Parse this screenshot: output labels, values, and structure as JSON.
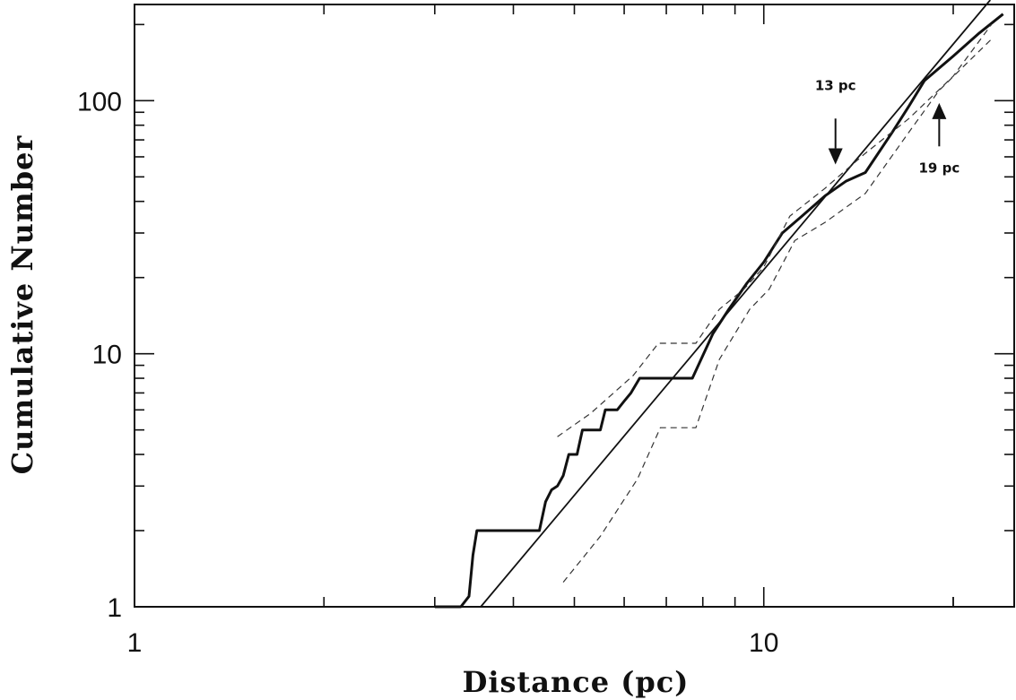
{
  "chart_data": {
    "type": "line",
    "xlabel": "Distance (pc)",
    "ylabel": "Cumulative Number",
    "xscale": "log",
    "yscale": "log",
    "xlim": [
      1,
      25
    ],
    "ylim": [
      1,
      240
    ],
    "x_ticks": [
      {
        "value": 1,
        "label": "1"
      },
      {
        "value": 10,
        "label": "10"
      }
    ],
    "y_ticks": [
      {
        "value": 1,
        "label": "1"
      },
      {
        "value": 10,
        "label": "10"
      },
      {
        "value": 100,
        "label": "100"
      }
    ],
    "grid": false,
    "series": [
      {
        "style": "solid-thick",
        "points": [
          [
            3.0,
            1
          ],
          [
            3.3,
            1
          ],
          [
            3.4,
            1.1
          ],
          [
            3.45,
            1.6
          ],
          [
            3.5,
            2
          ],
          [
            4.4,
            2
          ],
          [
            4.5,
            2.6
          ],
          [
            4.6,
            2.9
          ],
          [
            4.7,
            3.0
          ],
          [
            4.8,
            3.3
          ],
          [
            4.9,
            4
          ],
          [
            5.05,
            4
          ],
          [
            5.15,
            5
          ],
          [
            5.5,
            5
          ],
          [
            5.6,
            6
          ],
          [
            5.85,
            6
          ],
          [
            6.0,
            6.5
          ],
          [
            6.15,
            7
          ],
          [
            6.35,
            8
          ],
          [
            7.7,
            8
          ],
          [
            8.3,
            12
          ],
          [
            8.8,
            15
          ],
          [
            9.4,
            19
          ],
          [
            10.0,
            23
          ],
          [
            10.7,
            30
          ],
          [
            11.5,
            35
          ],
          [
            12.5,
            42
          ],
          [
            13.5,
            48
          ],
          [
            14.5,
            52
          ],
          [
            16.0,
            75
          ],
          [
            17.0,
            95
          ],
          [
            18.0,
            120
          ],
          [
            20.0,
            150
          ],
          [
            22.0,
            185
          ],
          [
            24.0,
            220
          ]
        ]
      },
      {
        "style": "solid-fit",
        "points": [
          [
            3.55,
            1
          ],
          [
            22.9,
            250
          ]
        ]
      },
      {
        "style": "dashed",
        "points": [
          [
            4.7,
            4.7
          ],
          [
            5.3,
            5.8
          ],
          [
            6.2,
            8.2
          ],
          [
            6.8,
            11
          ],
          [
            7.8,
            11
          ],
          [
            8.5,
            15
          ],
          [
            9.3,
            18
          ],
          [
            10.0,
            22
          ],
          [
            11.0,
            35
          ],
          [
            12.5,
            45
          ],
          [
            14.5,
            62
          ],
          [
            17.0,
            85
          ],
          [
            20.0,
            125
          ],
          [
            23.0,
            200
          ]
        ]
      },
      {
        "style": "dashed",
        "points": [
          [
            4.8,
            1.25
          ],
          [
            5.5,
            1.9
          ],
          [
            6.3,
            3.2
          ],
          [
            6.85,
            5.1
          ],
          [
            7.8,
            5.1
          ],
          [
            8.5,
            9.5
          ],
          [
            9.5,
            15
          ],
          [
            10.2,
            18
          ],
          [
            11.2,
            28
          ],
          [
            12.5,
            33
          ],
          [
            14.5,
            43
          ],
          [
            17.0,
            75
          ],
          [
            19.0,
            110
          ],
          [
            23.0,
            175
          ]
        ]
      }
    ],
    "annotations": [
      {
        "text": "13 pc",
        "x": 13,
        "y_text": 110,
        "arrow_from": 85,
        "arrow_to": 56,
        "direction": "down"
      },
      {
        "text": "19 pc",
        "x": 19,
        "y_text": 52,
        "arrow_from": 66,
        "arrow_to": 98,
        "direction": "up"
      }
    ]
  }
}
